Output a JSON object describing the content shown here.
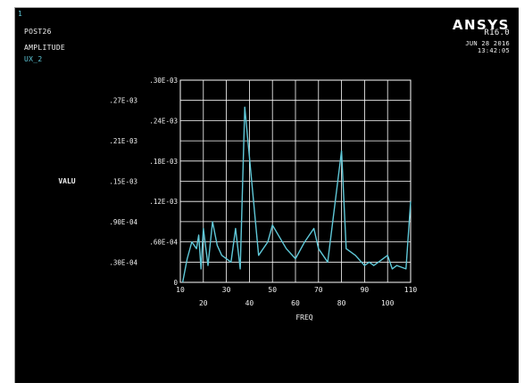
{
  "window": {
    "number": "1"
  },
  "header": {
    "title": "POST26",
    "subtitle": "AMPLITUDE",
    "variable": "UX_2"
  },
  "brand": {
    "name": "ANSYS",
    "version": "R16.0",
    "date": "JUN 28 2016",
    "time": "13:42:05"
  },
  "colors": {
    "background": "#000000",
    "text": "#f0f0f0",
    "curve": "#5fc8d8",
    "grid": "#ffffff"
  },
  "chart_data": {
    "type": "line",
    "xlabel": "FREQ",
    "ylabel": "VALU",
    "xlim": [
      10,
      110
    ],
    "ylim": [
      0,
      0.0003
    ],
    "grid": true,
    "x_ticks": [
      10,
      20,
      30,
      40,
      50,
      60,
      70,
      80,
      90,
      100,
      110
    ],
    "x_tick_labels": [
      "10",
      "20",
      "30",
      "40",
      "50",
      "60",
      "70",
      "80",
      "90",
      "100",
      "110"
    ],
    "y_ticks": [
      0,
      3e-05,
      6e-05,
      9e-05,
      0.00012,
      0.00015,
      0.00018,
      0.00021,
      0.00024,
      0.00027,
      0.0003
    ],
    "y_tick_labels": [
      "0",
      ".30E-04",
      ".60E-04",
      ".90E-04",
      ".12E-03",
      ".15E-03",
      ".18E-03",
      ".21E-03",
      ".24E-03",
      ".27E-03",
      ".30E-03"
    ],
    "series": [
      {
        "x": [
          11,
          13,
          15,
          17,
          18,
          19,
          20,
          22,
          24,
          26,
          28,
          32,
          34,
          36,
          38,
          44,
          48,
          50,
          56,
          60,
          64,
          68,
          70,
          74,
          80,
          82,
          86,
          90,
          92,
          94,
          96,
          100,
          102,
          104,
          108,
          110
        ],
        "y": [
          0,
          3.5e-05,
          6e-05,
          5e-05,
          7e-05,
          2e-05,
          8e-05,
          2.5e-05,
          9e-05,
          5.5e-05,
          4e-05,
          3e-05,
          8e-05,
          2e-05,
          0.00026,
          4e-05,
          6e-05,
          8.5e-05,
          5e-05,
          3.5e-05,
          6e-05,
          8e-05,
          5e-05,
          3e-05,
          0.000195,
          5e-05,
          4e-05,
          2.5e-05,
          3e-05,
          2.5e-05,
          3e-05,
          4e-05,
          2e-05,
          2.5e-05,
          2e-05,
          0.00012
        ]
      }
    ]
  }
}
